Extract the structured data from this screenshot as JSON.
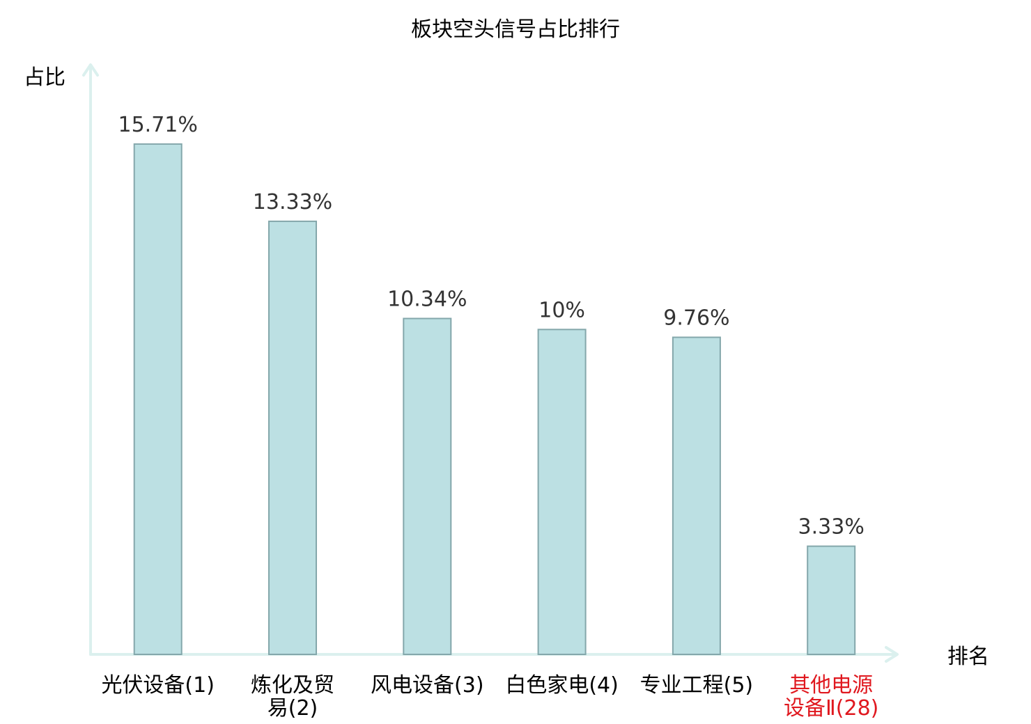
{
  "chart_data": {
    "type": "bar",
    "title": "板块空头信号占比排行",
    "ylabel": "占比",
    "xlabel": "排名",
    "categories": [
      [
        "光伏设备(1)"
      ],
      [
        "炼化及贸",
        "易(2)"
      ],
      [
        "风电设备(3)"
      ],
      [
        "白色家电(4)"
      ],
      [
        "专业工程(5)"
      ],
      [
        "其他电源",
        "设备Ⅱ(28)"
      ]
    ],
    "values": [
      15.71,
      13.33,
      10.34,
      10,
      9.76,
      3.33
    ],
    "value_labels": [
      "15.71%",
      "13.33%",
      "10.34%",
      "10%",
      "9.76%",
      "3.33%"
    ],
    "highlight_index": 5,
    "ylim": [
      0,
      18
    ],
    "grid": false,
    "colors": {
      "bar_fill": "#bce0e3",
      "bar_stroke": "#84a7ab",
      "axis": "#dbf0ee",
      "highlight_label": "#e0181f",
      "value_text": "#333333"
    }
  }
}
